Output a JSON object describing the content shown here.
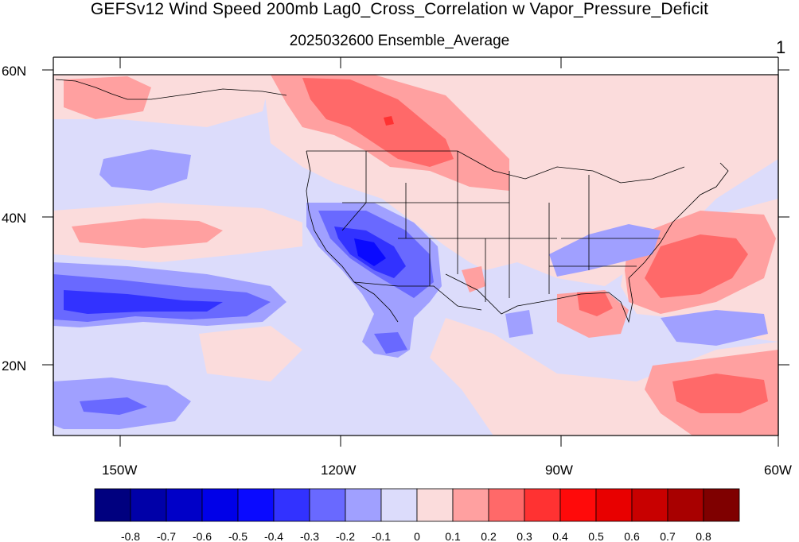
{
  "title": "GEFSv12 Wind Speed 200mb Lag0_Cross_Correlation w Vapor_Pressure_Deficit",
  "subtitle": "2025032600 Ensemble_Average",
  "corner_label": "1",
  "lat_labels": [
    "60N",
    "40N",
    "20N"
  ],
  "lon_labels": [
    "150W",
    "120W",
    "90W",
    "60W"
  ],
  "colorbar": {
    "labels": [
      "-0.8",
      "-0.7",
      "-0.6",
      "-0.5",
      "-0.4",
      "-0.3",
      "-0.2",
      "-0.1",
      "0",
      "0.1",
      "0.2",
      "0.3",
      "0.4",
      "0.5",
      "0.6",
      "0.7",
      "0.8"
    ],
    "colors": [
      "#00007f",
      "#0000a8",
      "#0000c8",
      "#0000e8",
      "#0a0aff",
      "#3232ff",
      "#6969ff",
      "#a0a0ff",
      "#dcdcfb",
      "#fbdcdc",
      "#ffa0a0",
      "#ff6969",
      "#ff3232",
      "#ff0a0a",
      "#e80000",
      "#c80000",
      "#a80000",
      "#7f0000"
    ]
  },
  "palette": {
    "near_zero_pos": "#fbdcdc",
    "near_zero_neg": "#dcdcfb",
    "missing": "#c8c8c8"
  }
}
